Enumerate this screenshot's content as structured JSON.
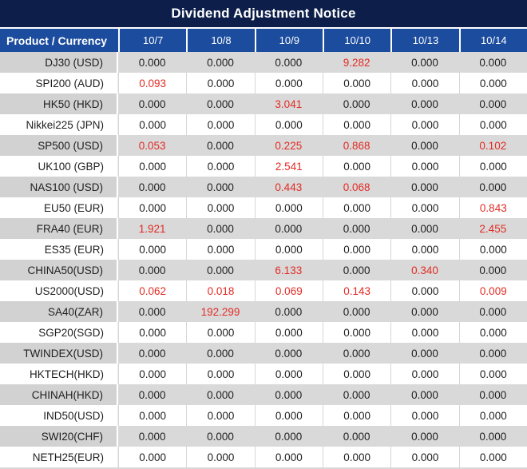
{
  "title": "Dividend Adjustment Notice",
  "colors": {
    "title_bg": "#0c1e49",
    "header_bg": "#1b4c9e",
    "stripe_product_bg": "#d2d2d2",
    "stripe_value_bg": "#d9d9d9",
    "plain_bg": "#ffffff",
    "text": "#1f1f1f",
    "highlight_red": "#e32b24",
    "header_text": "#ffffff"
  },
  "table": {
    "product_header": "Product / Currency",
    "columns": [
      "10/7",
      "10/8",
      "10/9",
      "10/10",
      "10/13",
      "10/14"
    ],
    "rows": [
      {
        "product": "DJ30 (USD)",
        "values": [
          "0.000",
          "0.000",
          "0.000",
          "9.282",
          "0.000",
          "0.000"
        ],
        "red": [
          3
        ]
      },
      {
        "product": "SPI200 (AUD)",
        "values": [
          "0.093",
          "0.000",
          "0.000",
          "0.000",
          "0.000",
          "0.000"
        ],
        "red": [
          0
        ]
      },
      {
        "product": "HK50 (HKD)",
        "values": [
          "0.000",
          "0.000",
          "3.041",
          "0.000",
          "0.000",
          "0.000"
        ],
        "red": [
          2
        ]
      },
      {
        "product": "Nikkei225 (JPN)",
        "values": [
          "0.000",
          "0.000",
          "0.000",
          "0.000",
          "0.000",
          "0.000"
        ],
        "red": []
      },
      {
        "product": "SP500 (USD)",
        "values": [
          "0.053",
          "0.000",
          "0.225",
          "0.868",
          "0.000",
          "0.102"
        ],
        "red": [
          0,
          2,
          3,
          5
        ]
      },
      {
        "product": "UK100 (GBP)",
        "values": [
          "0.000",
          "0.000",
          "2.541",
          "0.000",
          "0.000",
          "0.000"
        ],
        "red": [
          2
        ]
      },
      {
        "product": "NAS100 (USD)",
        "values": [
          "0.000",
          "0.000",
          "0.443",
          "0.068",
          "0.000",
          "0.000"
        ],
        "red": [
          2,
          3
        ]
      },
      {
        "product": "EU50 (EUR)",
        "values": [
          "0.000",
          "0.000",
          "0.000",
          "0.000",
          "0.000",
          "0.843"
        ],
        "red": [
          5
        ]
      },
      {
        "product": "FRA40 (EUR)",
        "values": [
          "1.921",
          "0.000",
          "0.000",
          "0.000",
          "0.000",
          "2.455"
        ],
        "red": [
          0,
          5
        ]
      },
      {
        "product": "ES35 (EUR)",
        "values": [
          "0.000",
          "0.000",
          "0.000",
          "0.000",
          "0.000",
          "0.000"
        ],
        "red": []
      },
      {
        "product": "CHINA50(USD)",
        "values": [
          "0.000",
          "0.000",
          "6.133",
          "0.000",
          "0.340",
          "0.000"
        ],
        "red": [
          2,
          4
        ]
      },
      {
        "product": "US2000(USD)",
        "values": [
          "0.062",
          "0.018",
          "0.069",
          "0.143",
          "0.000",
          "0.009"
        ],
        "red": [
          0,
          1,
          2,
          3,
          5
        ]
      },
      {
        "product": "SA40(ZAR)",
        "values": [
          "0.000",
          "192.299",
          "0.000",
          "0.000",
          "0.000",
          "0.000"
        ],
        "red": [
          1
        ]
      },
      {
        "product": "SGP20(SGD)",
        "values": [
          "0.000",
          "0.000",
          "0.000",
          "0.000",
          "0.000",
          "0.000"
        ],
        "red": []
      },
      {
        "product": "TWINDEX(USD)",
        "values": [
          "0.000",
          "0.000",
          "0.000",
          "0.000",
          "0.000",
          "0.000"
        ],
        "red": []
      },
      {
        "product": "HKTECH(HKD)",
        "values": [
          "0.000",
          "0.000",
          "0.000",
          "0.000",
          "0.000",
          "0.000"
        ],
        "red": []
      },
      {
        "product": "CHINAH(HKD)",
        "values": [
          "0.000",
          "0.000",
          "0.000",
          "0.000",
          "0.000",
          "0.000"
        ],
        "red": []
      },
      {
        "product": "IND50(USD)",
        "values": [
          "0.000",
          "0.000",
          "0.000",
          "0.000",
          "0.000",
          "0.000"
        ],
        "red": []
      },
      {
        "product": "SWI20(CHF)",
        "values": [
          "0.000",
          "0.000",
          "0.000",
          "0.000",
          "0.000",
          "0.000"
        ],
        "red": []
      },
      {
        "product": "NETH25(EUR)",
        "values": [
          "0.000",
          "0.000",
          "0.000",
          "0.000",
          "0.000",
          "0.000"
        ],
        "red": []
      }
    ]
  }
}
